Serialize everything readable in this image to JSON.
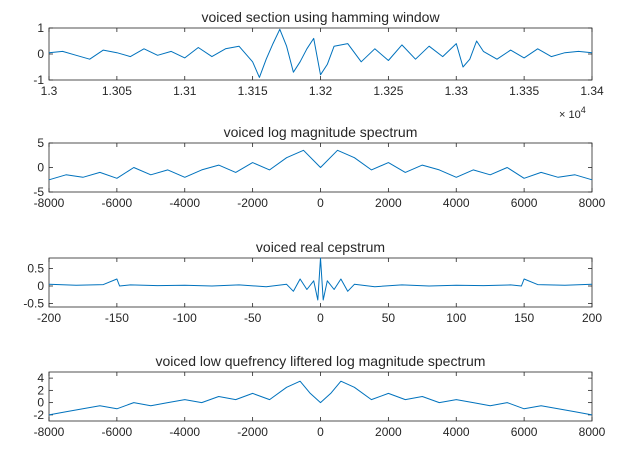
{
  "figure": {
    "colors": {
      "line": "#0072bd",
      "axis": "#262626",
      "background": "#ffffff"
    }
  },
  "chart_data": [
    {
      "type": "line",
      "title": "voiced section using hamming window",
      "xlim": [
        1.3,
        1.34
      ],
      "ylim": [
        -1,
        1
      ],
      "xticks": [
        1.3,
        1.305,
        1.31,
        1.315,
        1.32,
        1.325,
        1.33,
        1.335,
        1.34
      ],
      "xtick_labels": [
        "1.3",
        "1.305",
        "1.31",
        "1.315",
        "1.32",
        "1.325",
        "1.33",
        "1.335",
        "1.34"
      ],
      "yticks": [
        -1,
        0,
        1
      ],
      "ytick_labels": [
        "-1",
        "0",
        "1"
      ],
      "x_exponent_base": "× 10",
      "x_exponent_power": "4",
      "series": [
        {
          "x": [
            1.3,
            1.301,
            1.302,
            1.303,
            1.304,
            1.305,
            1.306,
            1.307,
            1.308,
            1.309,
            1.31,
            1.311,
            1.312,
            1.313,
            1.314,
            1.315,
            1.3155,
            1.316,
            1.3165,
            1.317,
            1.3175,
            1.318,
            1.3185,
            1.319,
            1.3195,
            1.32,
            1.3205,
            1.321,
            1.322,
            1.323,
            1.324,
            1.325,
            1.326,
            1.327,
            1.328,
            1.329,
            1.33,
            1.3305,
            1.331,
            1.3315,
            1.332,
            1.333,
            1.334,
            1.335,
            1.336,
            1.337,
            1.338,
            1.339,
            1.34
          ],
          "y": [
            0.05,
            0.1,
            -0.05,
            -0.2,
            0.15,
            0.05,
            -0.1,
            0.2,
            -0.05,
            0.1,
            -0.15,
            0.25,
            -0.1,
            0.2,
            0.3,
            -0.3,
            -0.9,
            -0.2,
            0.4,
            0.95,
            0.3,
            -0.7,
            -0.3,
            0.2,
            0.6,
            -0.8,
            -0.4,
            0.3,
            0.4,
            -0.3,
            0.2,
            -0.25,
            0.35,
            -0.2,
            0.3,
            -0.1,
            0.4,
            -0.5,
            -0.2,
            0.5,
            0.1,
            -0.2,
            0.15,
            -0.15,
            0.2,
            -0.1,
            0.05,
            0.1,
            0.05
          ]
        }
      ]
    },
    {
      "type": "line",
      "title": "voiced log magnitude spectrum",
      "xlim": [
        -8000,
        8000
      ],
      "ylim": [
        -5,
        5
      ],
      "xticks": [
        -8000,
        -6000,
        -4000,
        -2000,
        0,
        2000,
        4000,
        6000,
        8000
      ],
      "xtick_labels": [
        "-8000",
        "-6000",
        "-4000",
        "-2000",
        "0",
        "2000",
        "4000",
        "6000",
        "8000"
      ],
      "yticks": [
        -5,
        0,
        5
      ],
      "ytick_labels": [
        "-5",
        "0",
        "5"
      ],
      "series": [
        {
          "x": [
            -8000,
            -7500,
            -7000,
            -6500,
            -6000,
            -5500,
            -5000,
            -4500,
            -4000,
            -3500,
            -3000,
            -2500,
            -2000,
            -1500,
            -1000,
            -500,
            0,
            500,
            1000,
            1500,
            2000,
            2500,
            3000,
            3500,
            4000,
            4500,
            5000,
            5500,
            6000,
            6500,
            7000,
            7500,
            8000
          ],
          "y": [
            -2.5,
            -1.5,
            -2,
            -1,
            -2.2,
            0,
            -1.5,
            -0.5,
            -2,
            -0.5,
            0.5,
            -1,
            1,
            -0.5,
            2,
            3.5,
            0,
            3.5,
            2,
            -0.5,
            1,
            -1,
            0.5,
            -0.5,
            -2,
            -0.5,
            -1.5,
            0,
            -2.2,
            -1,
            -2,
            -1.5,
            -2.5
          ]
        }
      ]
    },
    {
      "type": "line",
      "title": "voiced real cepstrum",
      "xlim": [
        -200,
        200
      ],
      "ylim": [
        -0.6,
        0.8
      ],
      "xticks": [
        -200,
        -150,
        -100,
        -50,
        0,
        50,
        100,
        150,
        200
      ],
      "xtick_labels": [
        "-200",
        "-150",
        "-100",
        "-50",
        "0",
        "50",
        "100",
        "150",
        "200"
      ],
      "yticks": [
        -0.5,
        0,
        0.5
      ],
      "ytick_labels": [
        "-0.5",
        "0",
        "0.5"
      ],
      "series": [
        {
          "x": [
            -200,
            -180,
            -160,
            -150,
            -148,
            -140,
            -120,
            -100,
            -80,
            -60,
            -40,
            -25,
            -20,
            -15,
            -10,
            -5,
            -2,
            0,
            2,
            5,
            10,
            15,
            20,
            25,
            40,
            60,
            80,
            100,
            120,
            140,
            148,
            150,
            160,
            180,
            200
          ],
          "y": [
            0.05,
            0.02,
            0.04,
            0.2,
            0.0,
            0.03,
            0.01,
            0.02,
            0.0,
            0.03,
            -0.02,
            0.05,
            -0.15,
            0.2,
            -0.1,
            0.15,
            -0.4,
            0.8,
            -0.4,
            0.15,
            -0.1,
            0.2,
            -0.15,
            0.05,
            -0.02,
            0.03,
            0.0,
            0.02,
            0.01,
            0.03,
            0.0,
            0.2,
            0.04,
            0.02,
            0.05
          ]
        }
      ]
    },
    {
      "type": "line",
      "title": "voiced low quefrency liftered log magnitude spectrum",
      "xlim": [
        -8000,
        8000
      ],
      "ylim": [
        -3,
        5
      ],
      "xticks": [
        -8000,
        -6000,
        -4000,
        -2000,
        0,
        2000,
        4000,
        6000,
        8000
      ],
      "xtick_labels": [
        "-8000",
        "-6000",
        "-4000",
        "-2000",
        "0",
        "2000",
        "4000",
        "6000",
        "8000"
      ],
      "yticks": [
        -2,
        0,
        2,
        4
      ],
      "ytick_labels": [
        "-2",
        "0",
        "2",
        "4"
      ],
      "series": [
        {
          "x": [
            -8000,
            -7500,
            -7000,
            -6500,
            -6000,
            -5500,
            -5000,
            -4500,
            -4000,
            -3500,
            -3000,
            -2500,
            -2000,
            -1500,
            -1000,
            -600,
            -300,
            0,
            300,
            600,
            1000,
            1500,
            2000,
            2500,
            3000,
            3500,
            4000,
            4500,
            5000,
            5500,
            6000,
            6500,
            7000,
            7500,
            8000
          ],
          "y": [
            -2,
            -1.5,
            -1,
            -0.5,
            -1,
            0,
            -0.5,
            0,
            0.5,
            0,
            1,
            0.5,
            1.5,
            0.5,
            2.5,
            3.5,
            1.5,
            0,
            1.5,
            3.5,
            2.5,
            0.5,
            1.5,
            0.5,
            1,
            0,
            0.5,
            0,
            -0.5,
            0,
            -1,
            -0.5,
            -1,
            -1.5,
            -2
          ]
        }
      ]
    }
  ]
}
